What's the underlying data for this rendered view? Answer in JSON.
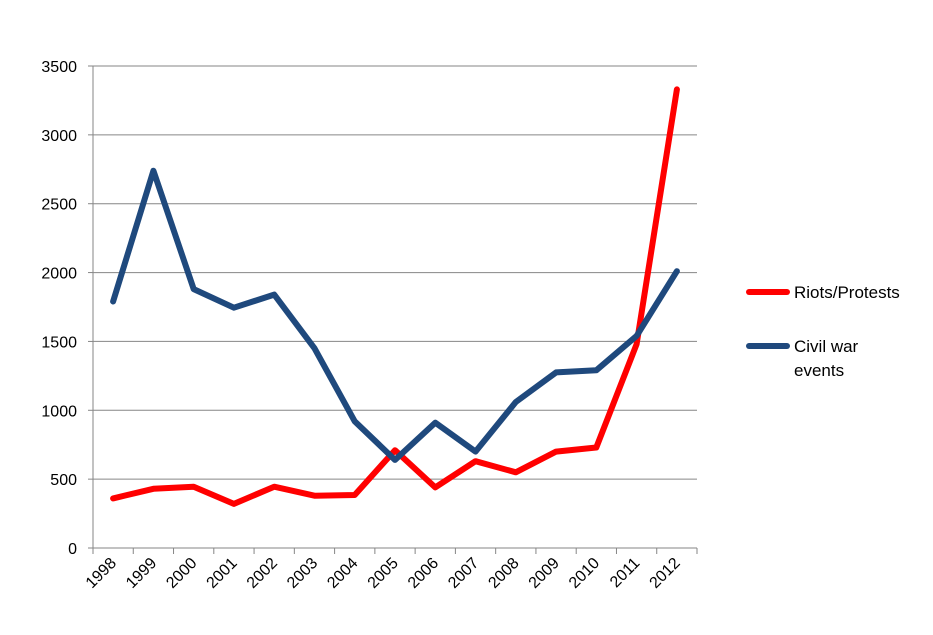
{
  "chart_data": {
    "type": "line",
    "title": "",
    "xlabel": "",
    "ylabel": "",
    "categories": [
      "1998",
      "1999",
      "2000",
      "2001",
      "2002",
      "2003",
      "2004",
      "2005",
      "2006",
      "2007",
      "2008",
      "2009",
      "2010",
      "2011",
      "2012"
    ],
    "ylim": [
      0,
      3500
    ],
    "yticks": [
      "0",
      "500",
      "1000",
      "1500",
      "2000",
      "2500",
      "3000",
      "3500"
    ],
    "grid": true,
    "legend_position": "right",
    "series": [
      {
        "name": "Riots/Protests",
        "color": "#ff0000",
        "values": [
          360,
          430,
          445,
          320,
          445,
          380,
          385,
          710,
          440,
          630,
          550,
          700,
          730,
          1480,
          3330
        ]
      },
      {
        "name": "Civil war events",
        "legend_lines": [
          "Civil war",
          "events"
        ],
        "color": "#1f497d",
        "values": [
          1790,
          2740,
          1880,
          1745,
          1840,
          1450,
          920,
          640,
          910,
          700,
          1060,
          1275,
          1290,
          1540,
          2010
        ]
      }
    ]
  }
}
